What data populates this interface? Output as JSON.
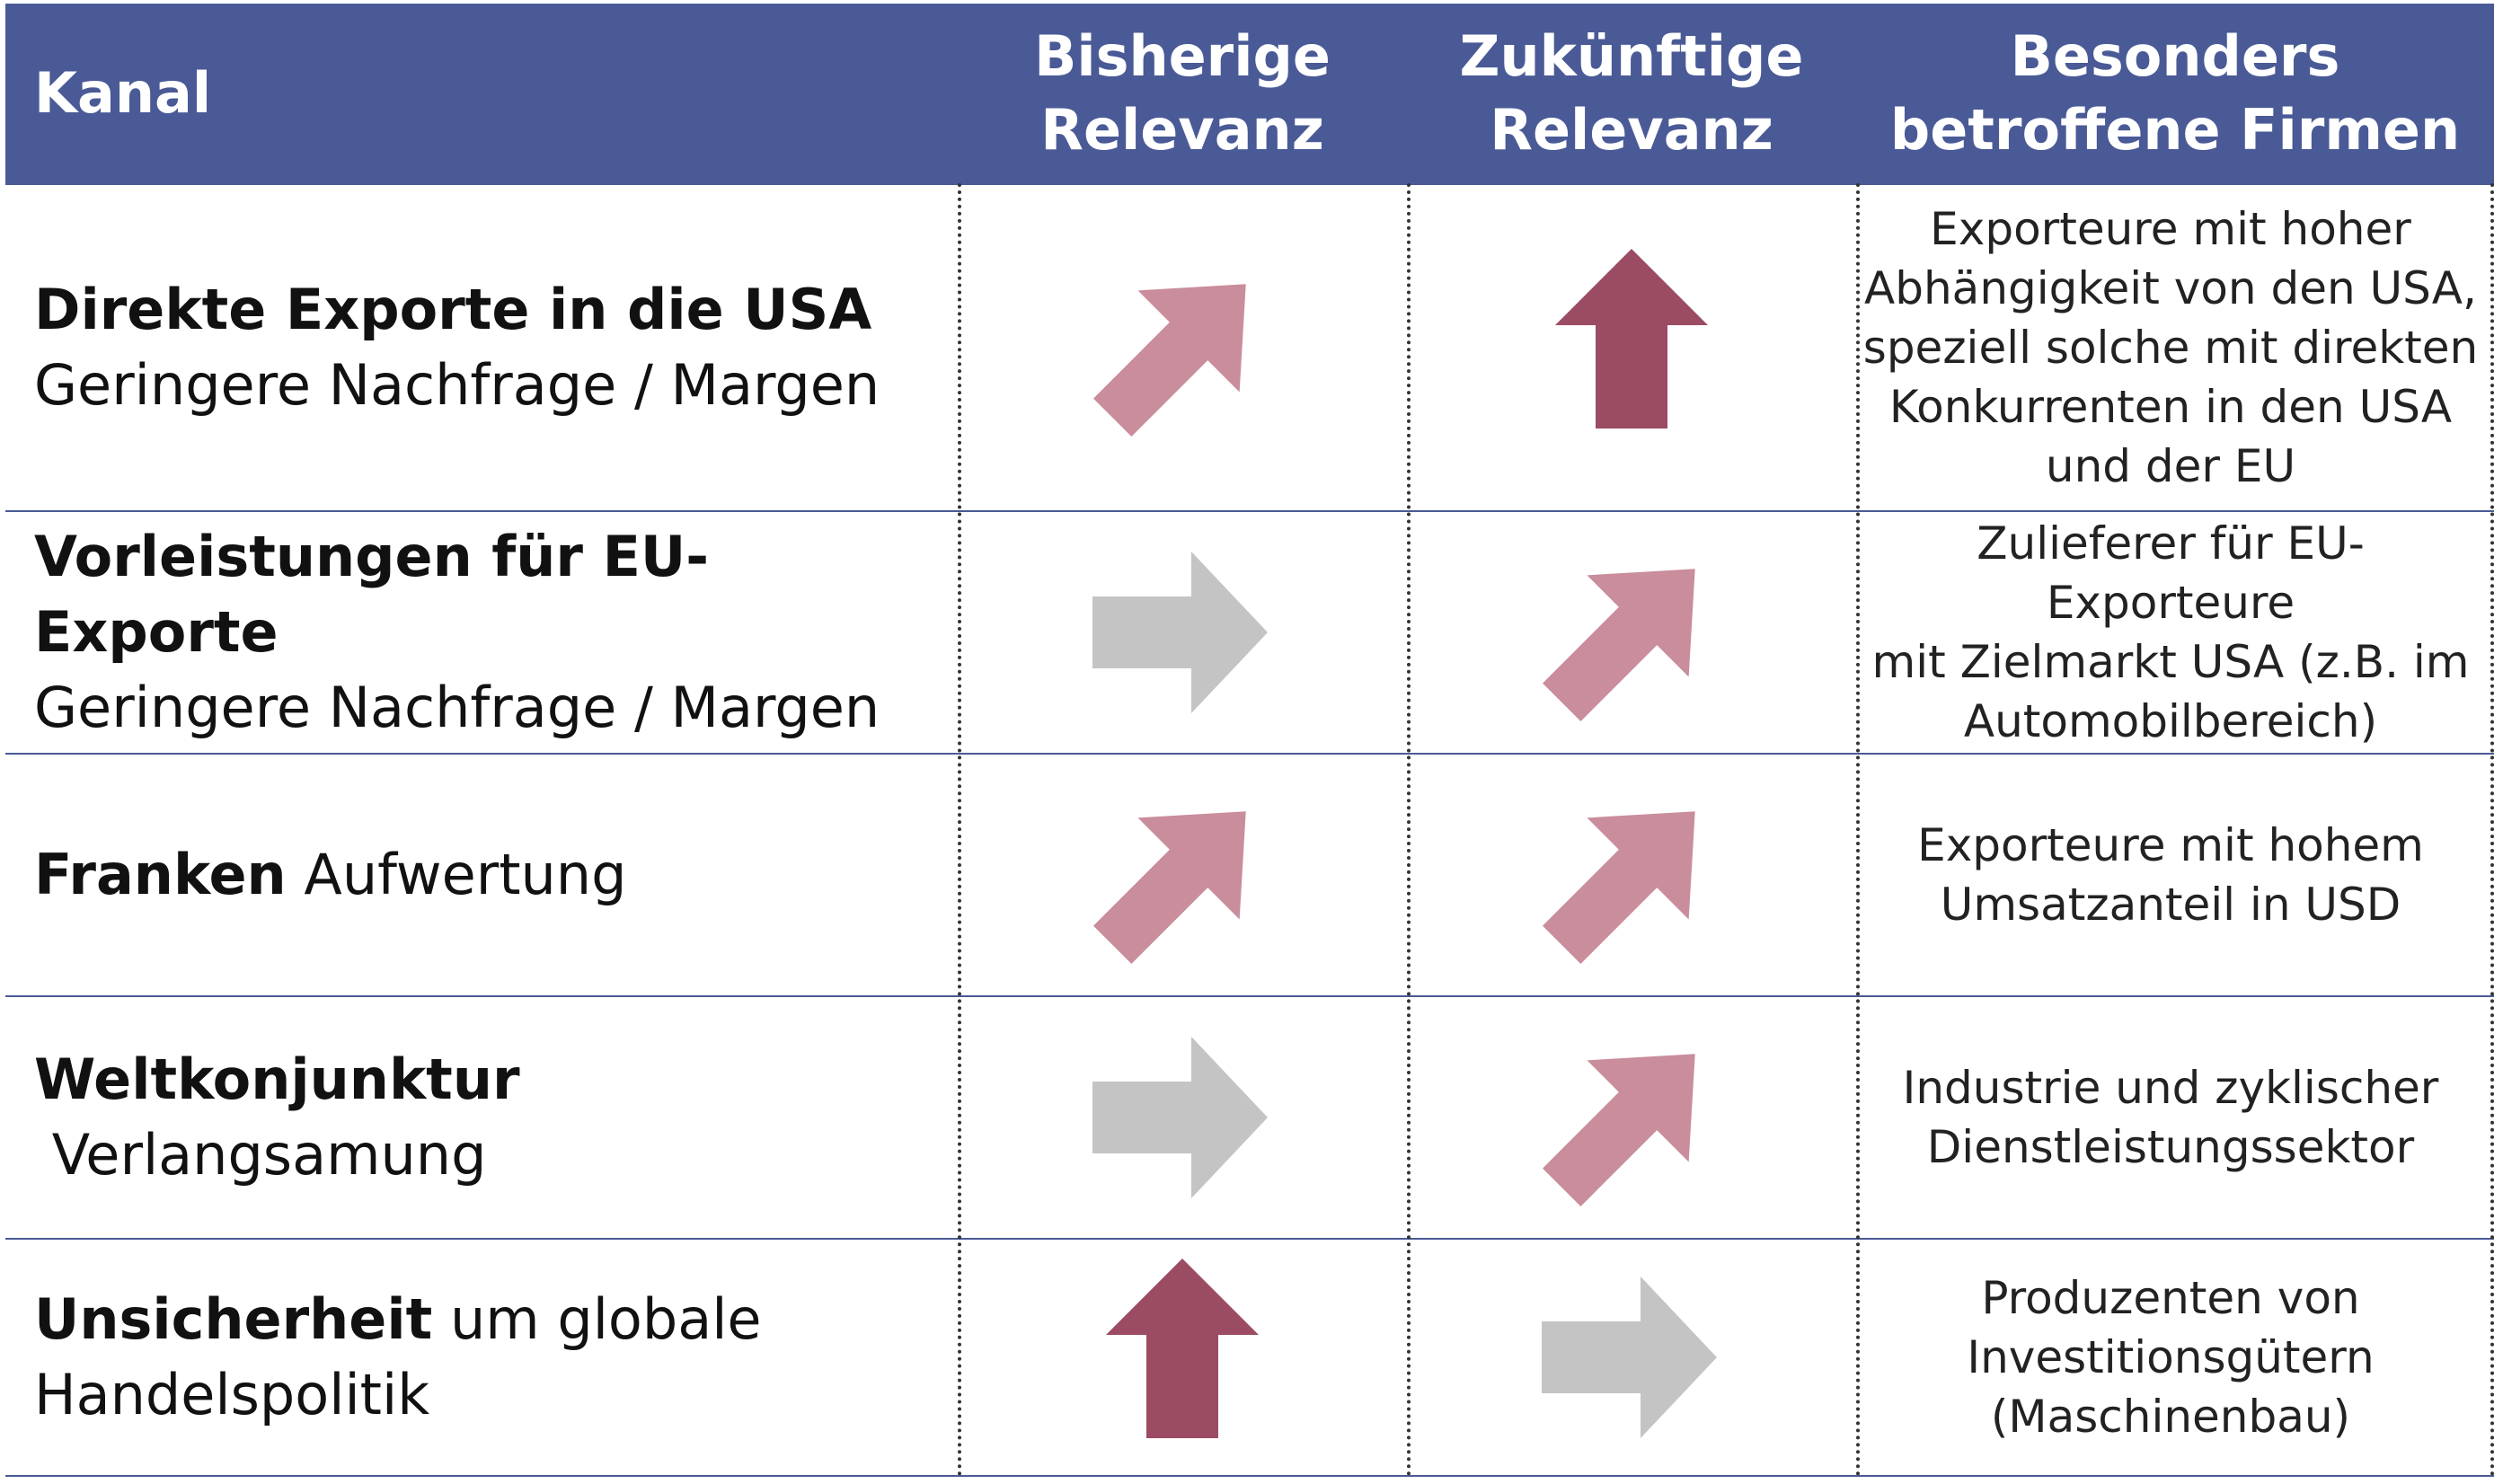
{
  "header": {
    "kanal": "Kanal",
    "bisherige": "Bisherige\nRelevanz",
    "zukuenftige": "Zukünftige\nRelevanz",
    "firmen": "Besonders\nbetroffene Firmen"
  },
  "colors": {
    "header_bg": "#4a5a96",
    "arrow_pink": "#c98d9c",
    "arrow_dark": "#9b4b62",
    "arrow_gray": "#c4c4c4"
  },
  "rows": [
    {
      "bold": "Direkte Exporte in die USA",
      "rest": "Geringere Nachfrage / Margen",
      "break": true,
      "bisherige": "diagonal-up",
      "zukuenftige": "up",
      "firmen": "Exporteure mit hoher\nAbhängigkeit von den USA,\nspeziell solche mit direkten\nKonkurrenten in den USA\nund der EU"
    },
    {
      "bold": "Vorleistungen für EU-Exporte",
      "rest": "Geringere Nachfrage / Margen",
      "break": true,
      "bisherige": "right",
      "zukuenftige": "diagonal-up",
      "firmen": "Zulieferer für EU-Exporteure\nmit Zielmarkt USA (z.B. im\nAutomobilbereich)"
    },
    {
      "bold": "Franken",
      "rest": " Aufwertung",
      "break": false,
      "bisherige": "diagonal-up",
      "zukuenftige": "diagonal-up",
      "firmen": "Exporteure mit hohem\nUmsatzanteil in USD"
    },
    {
      "bold": "Weltkonjunktur",
      "rest": " Verlangsamung",
      "break": false,
      "bisherige": "right",
      "zukuenftige": "diagonal-up",
      "firmen": "Industrie und zyklischer\nDienstleistungssektor"
    },
    {
      "bold": "Unsicherheit",
      "rest": " um globale\nHandelspolitik",
      "break": false,
      "bisherige": "up",
      "zukuenftige": "right",
      "firmen": "Produzenten von\nInvestitionsgütern\n(Maschinenbau)"
    }
  ]
}
